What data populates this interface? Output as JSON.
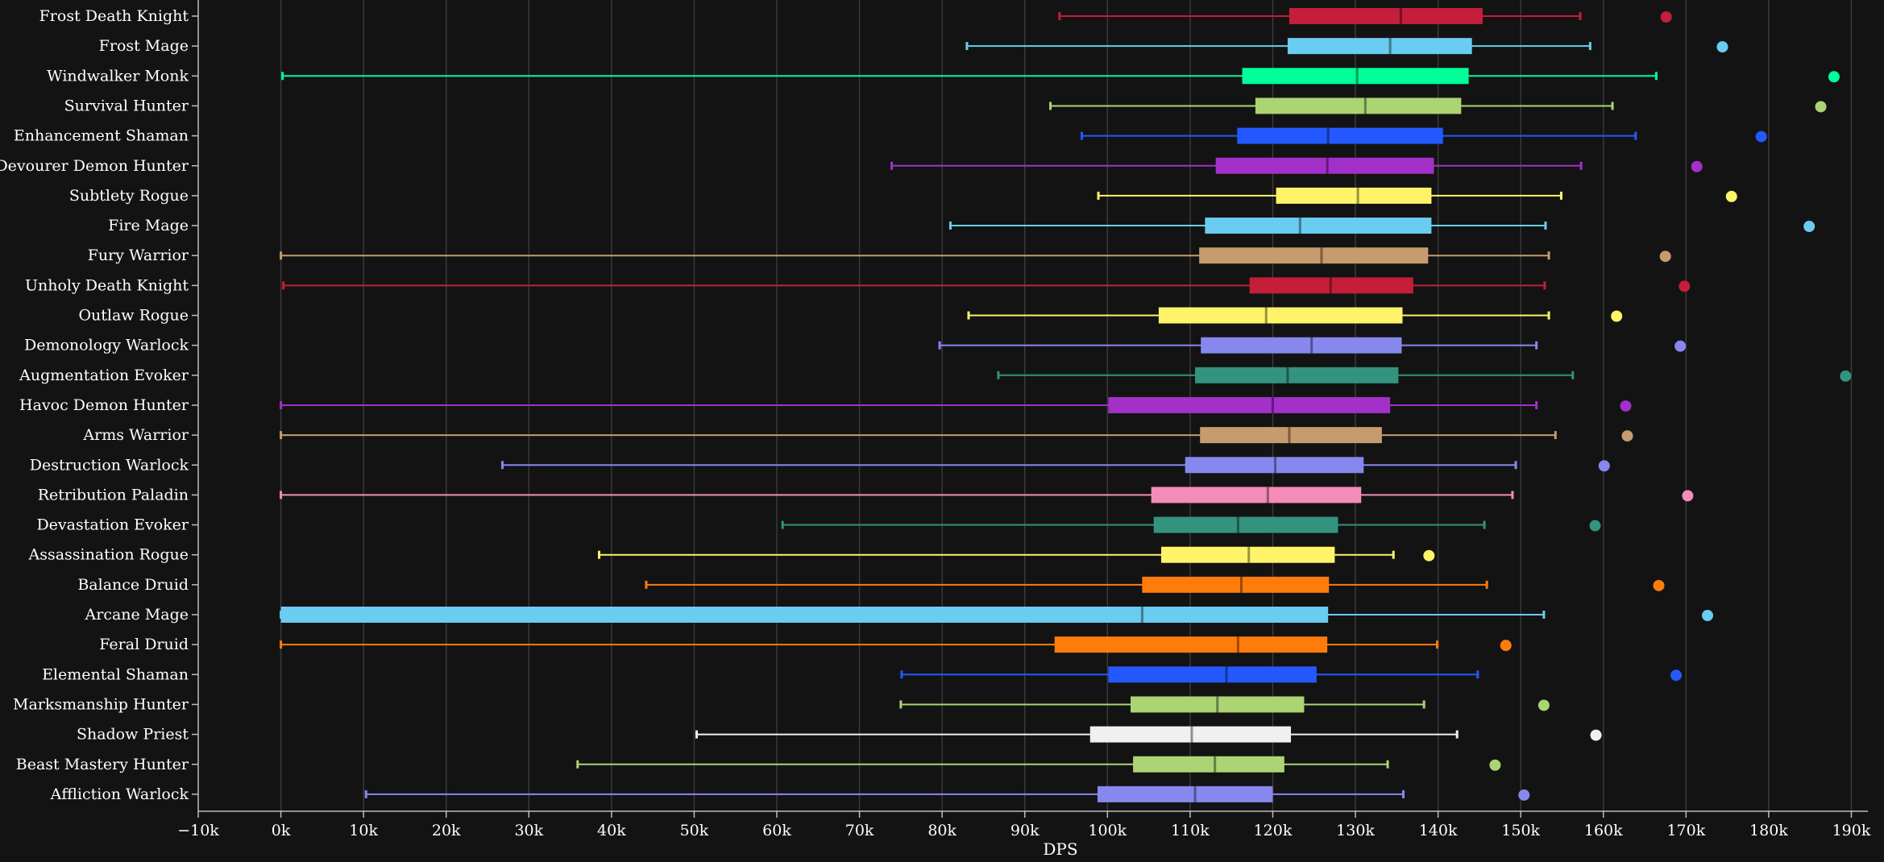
{
  "chart_data": {
    "type": "boxplot",
    "xlabel": "DPS",
    "xlim": [
      -10000,
      192000
    ],
    "x_ticks": [
      -10000,
      0,
      10000,
      20000,
      30000,
      40000,
      50000,
      60000,
      70000,
      80000,
      90000,
      100000,
      110000,
      120000,
      130000,
      140000,
      150000,
      160000,
      170000,
      180000,
      190000
    ],
    "x_tick_labels": [
      "−10k",
      "0k",
      "10k",
      "20k",
      "30k",
      "40k",
      "50k",
      "60k",
      "70k",
      "80k",
      "90k",
      "100k",
      "110k",
      "120k",
      "130k",
      "140k",
      "150k",
      "160k",
      "170k",
      "180k",
      "190k"
    ],
    "grid": "vertical",
    "categories": [
      "Frost Death Knight",
      "Frost Mage",
      "Windwalker Monk",
      "Survival Hunter",
      "Enhancement Shaman",
      "Devourer Demon Hunter",
      "Subtlety Rogue",
      "Fire Mage",
      "Fury Warrior",
      "Unholy Death Knight",
      "Outlaw Rogue",
      "Demonology Warlock",
      "Augmentation Evoker",
      "Havoc Demon Hunter",
      "Arms Warrior",
      "Destruction Warlock",
      "Retribution Paladin",
      "Devastation Evoker",
      "Assassination Rogue",
      "Balance Druid",
      "Arcane Mage",
      "Feral Druid",
      "Elemental Shaman",
      "Marksmanship Hunter",
      "Shadow Priest",
      "Beast Mastery Hunter",
      "Affliction Warlock"
    ],
    "series": [
      {
        "min": 94200,
        "q1": 122000,
        "median": 135500,
        "q3": 145400,
        "max": 157200,
        "outlier": 167600,
        "color": "#c41e3a"
      },
      {
        "min": 83000,
        "q1": 121800,
        "median": 134200,
        "q3": 144100,
        "max": 158400,
        "outlier": 174400,
        "color": "#69ccf0"
      },
      {
        "min": 200,
        "q1": 116300,
        "median": 130200,
        "q3": 143700,
        "max": 166400,
        "outlier": 187900,
        "color": "#00ff98"
      },
      {
        "min": 93100,
        "q1": 117900,
        "median": 131200,
        "q3": 142800,
        "max": 161100,
        "outlier": 186300,
        "color": "#abd473"
      },
      {
        "min": 96900,
        "q1": 115700,
        "median": 126700,
        "q3": 140600,
        "max": 163900,
        "outlier": 179100,
        "color": "#2359ff"
      },
      {
        "min": 73900,
        "q1": 113100,
        "median": 126600,
        "q3": 139500,
        "max": 157300,
        "outlier": 171300,
        "color": "#a330c9"
      },
      {
        "min": 98900,
        "q1": 120400,
        "median": 130300,
        "q3": 139200,
        "max": 154900,
        "outlier": 175500,
        "color": "#fff468"
      },
      {
        "min": 81000,
        "q1": 111800,
        "median": 123300,
        "q3": 139200,
        "max": 153000,
        "outlier": 184900,
        "color": "#69ccf0"
      },
      {
        "min": 0,
        "q1": 111100,
        "median": 125900,
        "q3": 138800,
        "max": 153400,
        "outlier": 167500,
        "color": "#c69b6d"
      },
      {
        "min": 300,
        "q1": 117200,
        "median": 127000,
        "q3": 137000,
        "max": 152900,
        "outlier": 169800,
        "color": "#c41e3a"
      },
      {
        "min": 83200,
        "q1": 106200,
        "median": 119200,
        "q3": 135700,
        "max": 153400,
        "outlier": 161600,
        "color": "#fff468"
      },
      {
        "min": 79700,
        "q1": 111300,
        "median": 124700,
        "q3": 135600,
        "max": 151900,
        "outlier": 169300,
        "color": "#8788ee"
      },
      {
        "min": 86800,
        "q1": 110600,
        "median": 121800,
        "q3": 135200,
        "max": 156300,
        "outlier": 189300,
        "color": "#33937f"
      },
      {
        "min": 0,
        "q1": 100100,
        "median": 120000,
        "q3": 134200,
        "max": 151900,
        "outlier": 162700,
        "color": "#a330c9"
      },
      {
        "min": 0,
        "q1": 111200,
        "median": 122000,
        "q3": 133200,
        "max": 154200,
        "outlier": 162900,
        "color": "#c69b6d"
      },
      {
        "min": 26800,
        "q1": 109400,
        "median": 120300,
        "q3": 131000,
        "max": 149400,
        "outlier": 160100,
        "color": "#8788ee"
      },
      {
        "min": 0,
        "q1": 105300,
        "median": 119400,
        "q3": 130700,
        "max": 149000,
        "outlier": 170200,
        "color": "#f48cba"
      },
      {
        "min": 60700,
        "q1": 105600,
        "median": 115800,
        "q3": 127900,
        "max": 145600,
        "outlier": 159000,
        "color": "#33937f"
      },
      {
        "min": 38500,
        "q1": 106500,
        "median": 117100,
        "q3": 127500,
        "max": 134600,
        "outlier": 138900,
        "color": "#fff468"
      },
      {
        "min": 44200,
        "q1": 104200,
        "median": 116200,
        "q3": 126800,
        "max": 145900,
        "outlier": 166700,
        "color": "#ff7c0a"
      },
      {
        "min": 0,
        "q1": 0,
        "median": 104200,
        "q3": 126700,
        "max": 152800,
        "outlier": 172600,
        "color": "#69ccf0"
      },
      {
        "min": 0,
        "q1": 93600,
        "median": 115800,
        "q3": 126600,
        "max": 139900,
        "outlier": 148200,
        "color": "#ff7c0a"
      },
      {
        "min": 75100,
        "q1": 100100,
        "median": 114400,
        "q3": 125300,
        "max": 144800,
        "outlier": 168800,
        "color": "#2359ff"
      },
      {
        "min": 75000,
        "q1": 102800,
        "median": 113300,
        "q3": 123800,
        "max": 138300,
        "outlier": 152800,
        "color": "#abd473"
      },
      {
        "min": 50300,
        "q1": 97900,
        "median": 110200,
        "q3": 122200,
        "max": 142300,
        "outlier": 159100,
        "color": "#f0f0f0"
      },
      {
        "min": 35900,
        "q1": 103100,
        "median": 113000,
        "q3": 121400,
        "max": 133900,
        "outlier": 146900,
        "color": "#abd473"
      },
      {
        "min": 10300,
        "q1": 98800,
        "median": 110600,
        "q3": 120000,
        "max": 135800,
        "outlier": 150400,
        "color": "#8788ee"
      }
    ]
  }
}
